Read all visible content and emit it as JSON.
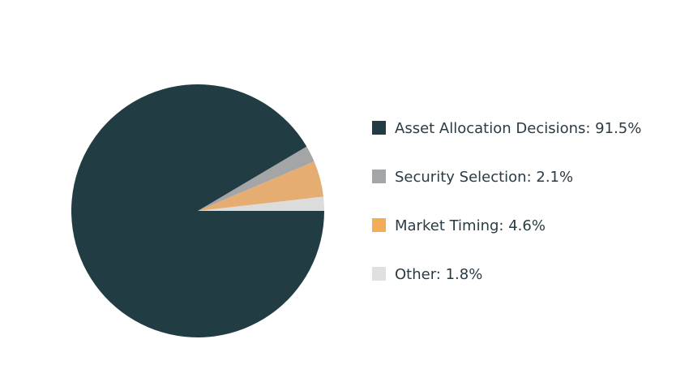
{
  "chart_data": {
    "type": "pie",
    "start_angle_deg": 0,
    "direction": "clockwise",
    "legend_position": "right",
    "slices": [
      {
        "label": "Asset Allocation Decisions",
        "value": 91.5,
        "display": "Asset Allocation Decisions: 91.5%",
        "color": "#223c44"
      },
      {
        "label": "Security Selection",
        "value": 2.1,
        "display": "Security Selection: 2.1%",
        "color": "#a3a5a6"
      },
      {
        "label": "Market Timing",
        "value": 4.6,
        "display": "Market Timing: 4.6%",
        "color": "#e5ad72"
      },
      {
        "label": "Other",
        "value": 1.8,
        "display": "Other: 1.8%",
        "color": "#dcdcdc"
      }
    ],
    "legend_swatch_colors": [
      "#223c44",
      "#a3a5a6",
      "#f3ad55",
      "#e0e0e0"
    ]
  }
}
